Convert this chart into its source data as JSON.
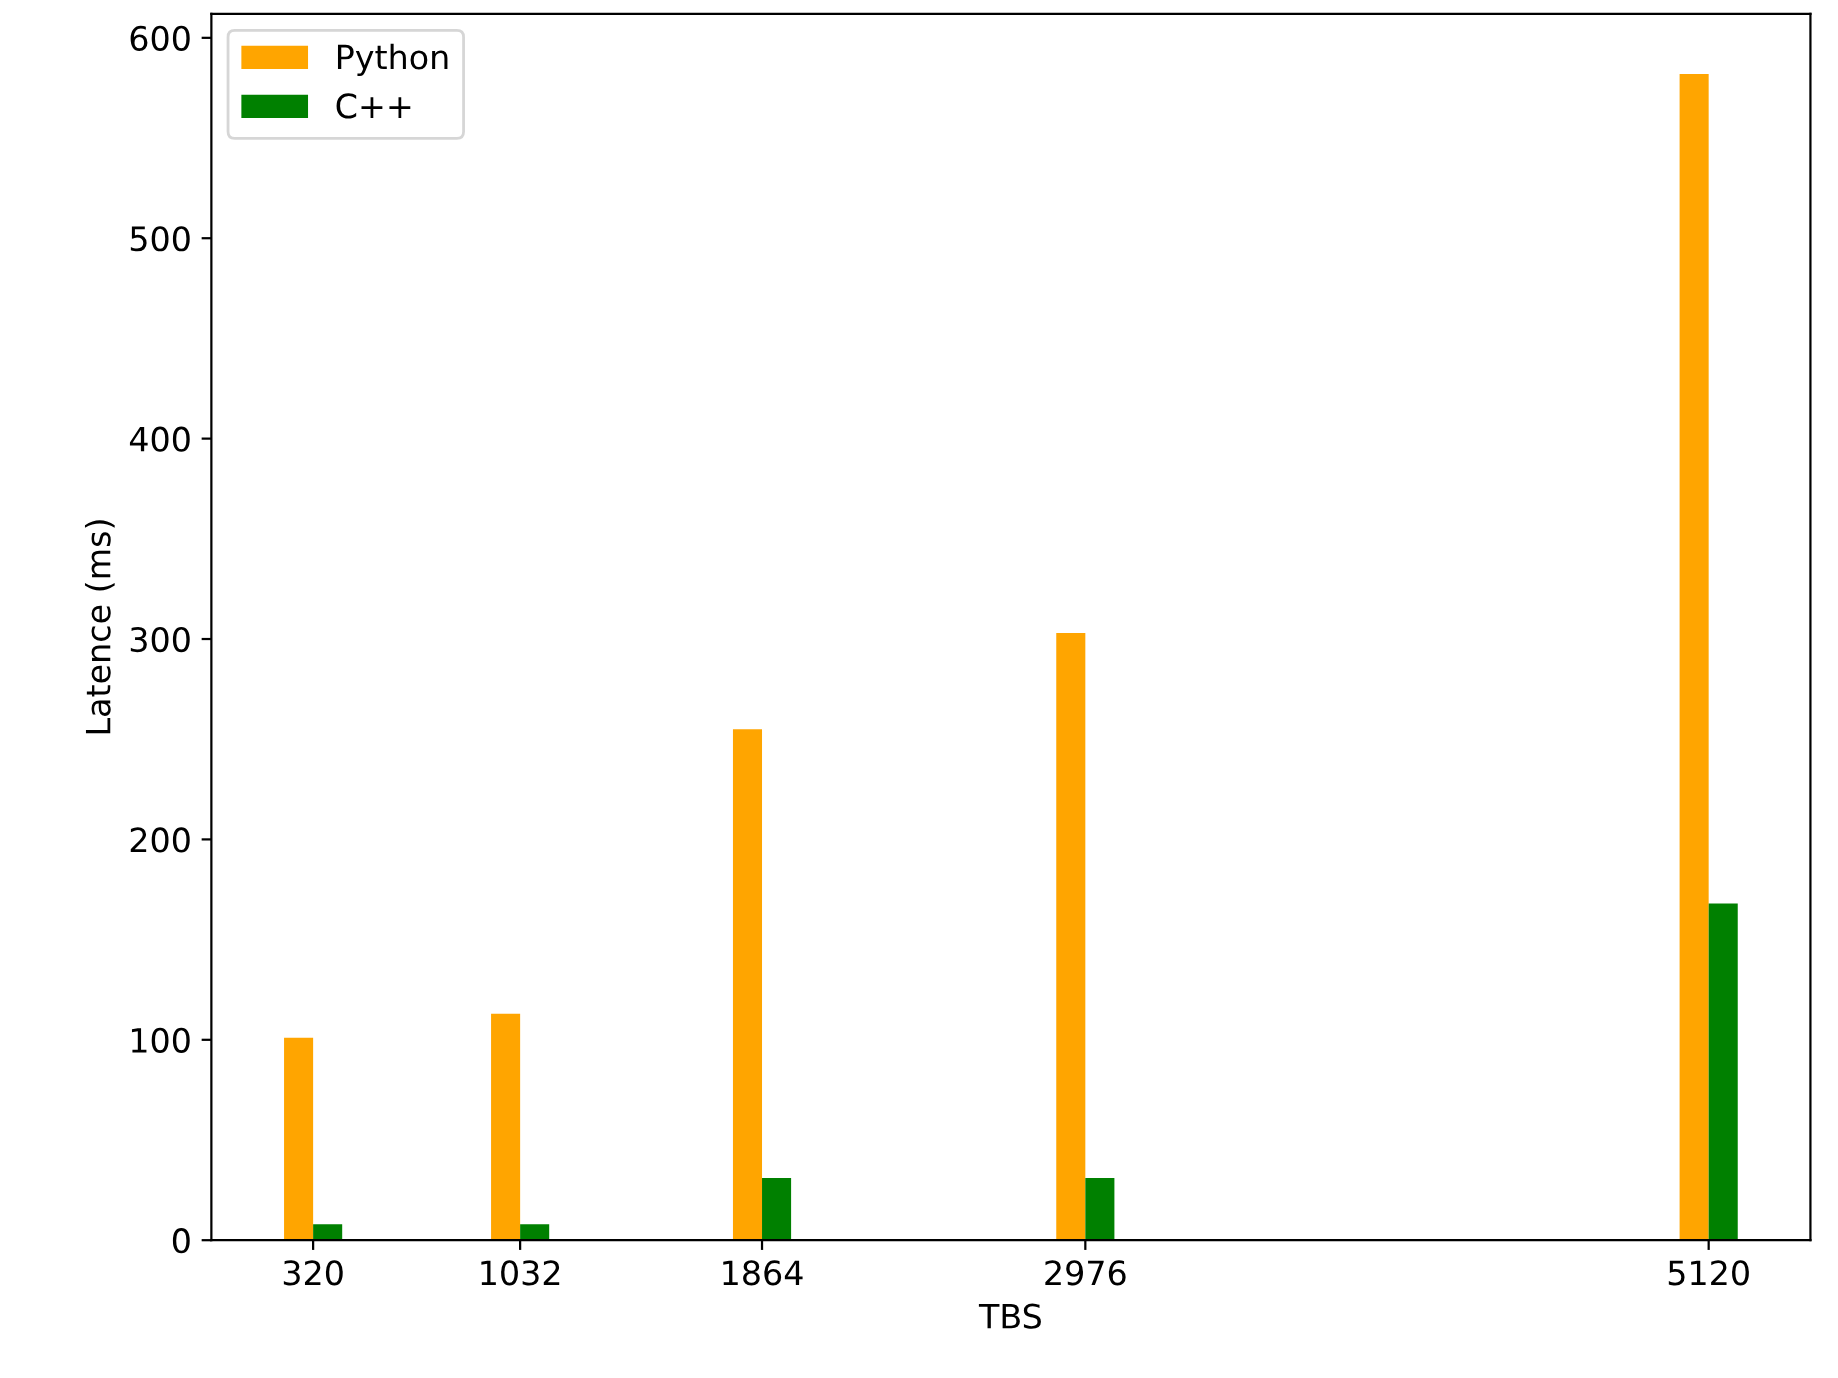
{
  "chart_data": {
    "type": "bar",
    "xlabel": "TBS",
    "ylabel": "Latence (ms)",
    "x": [
      320,
      1032,
      1864,
      2976,
      5120
    ],
    "xlim": [
      -30,
      5470
    ],
    "xticks": [
      320,
      1032,
      1864,
      2976,
      5120
    ],
    "ylim": [
      0,
      612
    ],
    "yticks": [
      0,
      100,
      200,
      300,
      400,
      500,
      600
    ],
    "series": [
      {
        "name": "Python",
        "color": "#ffa500",
        "values": [
          101,
          113,
          255,
          303,
          582
        ]
      },
      {
        "name": "C++",
        "color": "#008000",
        "values": [
          8,
          8,
          31,
          31,
          168
        ]
      }
    ],
    "grid": false,
    "legend": "top left"
  }
}
